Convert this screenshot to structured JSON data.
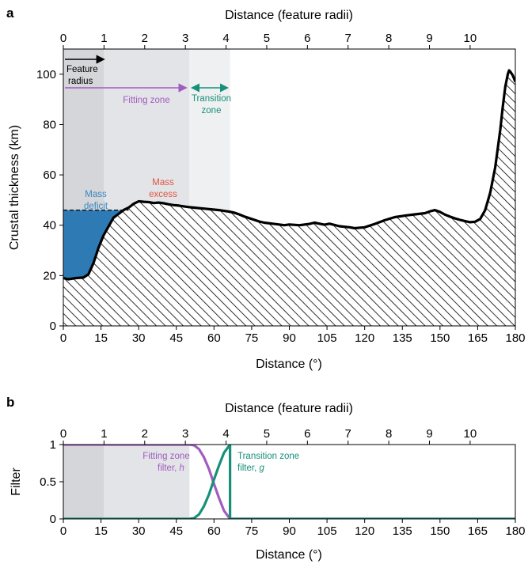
{
  "chart_data": [
    {
      "panel": "a",
      "type": "area",
      "xlabel": "Distance (°)",
      "x2label": "Distance (feature radii)",
      "ylabel": "Crustal thickness (km)",
      "xlim": [
        0,
        180
      ],
      "ylim": [
        0,
        110
      ],
      "xticks": [
        0,
        15,
        30,
        45,
        60,
        75,
        90,
        105,
        120,
        135,
        150,
        165,
        180
      ],
      "yticks": [
        0,
        20,
        40,
        60,
        80,
        100
      ],
      "x2ticks": [
        0,
        1,
        2,
        3,
        4,
        5,
        6,
        7,
        8,
        9,
        10
      ],
      "feature_radius_deg": 16.2,
      "fitting_zone_end_radii": 3.1,
      "transition_zone_end_radii": 4.1,
      "reference_thickness": 46,
      "series": [
        {
          "x": [
            0,
            2,
            5,
            8,
            10,
            12,
            14,
            16,
            18,
            20,
            22,
            24,
            26,
            28,
            30,
            32,
            34,
            36,
            38,
            40,
            42,
            44,
            46,
            48,
            50,
            52,
            54,
            56,
            58,
            60,
            62,
            64,
            66,
            68,
            70,
            72,
            75,
            78,
            80,
            84,
            88,
            90,
            94,
            98,
            100,
            104,
            106,
            110,
            114,
            116,
            120,
            124,
            128,
            132,
            136,
            140,
            144,
            146,
            148,
            150,
            152,
            154,
            156,
            158,
            160,
            162,
            164,
            166,
            168,
            170,
            172,
            174,
            175,
            176,
            177,
            177.5,
            178,
            179,
            180
          ],
          "y": [
            19,
            18.5,
            19,
            19.2,
            20.5,
            25,
            31,
            36,
            39.5,
            43,
            44.5,
            46,
            47,
            48.5,
            49.5,
            49.3,
            49.2,
            48.8,
            49,
            48.7,
            48.3,
            48,
            47.8,
            47.5,
            47.2,
            47,
            46.8,
            46.6,
            46.4,
            46.2,
            46,
            45.7,
            45.4,
            45,
            44.3,
            43.5,
            42.5,
            41.5,
            41,
            40.5,
            40,
            40.3,
            40,
            40.5,
            41,
            40.2,
            40.6,
            39.6,
            39.2,
            38.8,
            39.2,
            40.5,
            42,
            43.2,
            43.8,
            44.3,
            44.8,
            45.5,
            46,
            45.3,
            44.2,
            43.4,
            42.7,
            42.1,
            41.6,
            41.2,
            41.4,
            42.5,
            46,
            53,
            63,
            78,
            87,
            95,
            100,
            101.5,
            101,
            99.5,
            97
          ]
        }
      ],
      "annotations": {
        "feature_radius": "Feature radius",
        "fitting_zone": "Fitting zone",
        "transition_zone": "Transition zone",
        "mass_deficit": "Mass deficit",
        "mass_excess": "Mass excess"
      },
      "colors": {
        "feature_shade": "#d4d6d9",
        "fitting_shade": "#e3e4e7",
        "transition_shade": "#eff0f2",
        "deficit": "#2e7ab5",
        "excess": "#dc5341",
        "deficit_text": "#3a88c3",
        "excess_text": "#e05440",
        "fitting_arrow": "#a15cc0",
        "transition_arrow": "#17907a"
      }
    },
    {
      "panel": "b",
      "type": "line",
      "xlabel": "Distance (°)",
      "x2label": "Distance (feature radii)",
      "ylabel": "Filter",
      "xlim": [
        0,
        180
      ],
      "ylim": [
        0,
        1
      ],
      "xticks": [
        0,
        15,
        30,
        45,
        60,
        75,
        90,
        105,
        120,
        135,
        150,
        165,
        180
      ],
      "yticks": [
        0,
        0.5,
        1
      ],
      "x2ticks": [
        0,
        1,
        2,
        3,
        4,
        5,
        6,
        7,
        8,
        9,
        10
      ],
      "series": [
        {
          "label_line1": "Fitting zone",
          "label_line2": "filter, ",
          "symbol": "h",
          "color": "#a15cc0",
          "x": [
            0,
            50.2,
            52,
            54,
            56,
            58,
            60,
            62,
            64,
            66.4,
            180
          ],
          "y": [
            1,
            1,
            0.99,
            0.94,
            0.83,
            0.67,
            0.47,
            0.28,
            0.11,
            0,
            0
          ]
        },
        {
          "label_line1": "Transition zone",
          "label_line2": "filter, ",
          "symbol": "g",
          "color": "#17907a",
          "x": [
            0,
            50.2,
            52,
            54,
            56,
            58,
            60,
            62,
            64,
            66.4,
            66.4,
            180
          ],
          "y": [
            0,
            0,
            0.01,
            0.06,
            0.17,
            0.33,
            0.53,
            0.72,
            0.89,
            1,
            0,
            0
          ]
        }
      ],
      "colors": {
        "feature_shade": "#d4d6d9",
        "fitting_shade": "#e3e4e7"
      }
    }
  ]
}
